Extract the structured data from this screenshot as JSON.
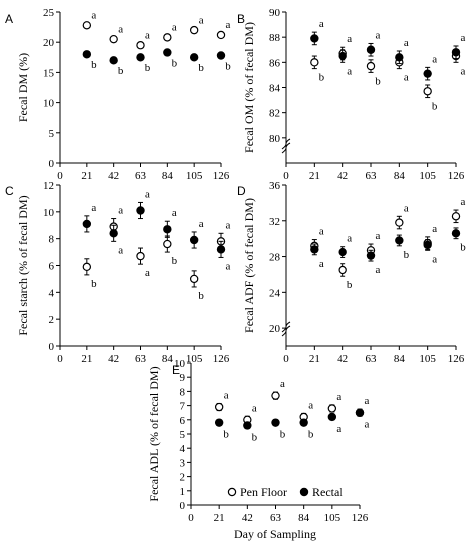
{
  "figure": {
    "common_xlabel": "Day of Sampling"
  },
  "legend": [
    {
      "label": "Pen Floor",
      "marker": "open-circle"
    },
    {
      "label": "Rectal",
      "marker": "filled-circle"
    }
  ],
  "chart_data": [
    {
      "panel": "A",
      "type": "scatter",
      "ylabel": "Fecal DM  (%)",
      "ylim": [
        0,
        25
      ],
      "yticks": [
        0,
        5,
        10,
        15,
        20,
        25
      ],
      "xlim": [
        0,
        126
      ],
      "xticks": [
        0,
        21,
        42,
        63,
        84,
        105,
        126
      ],
      "series": [
        {
          "name": "Pen Floor",
          "x": [
            21,
            42,
            63,
            84,
            105,
            126
          ],
          "values": [
            22.8,
            20.5,
            19.5,
            20.8,
            22.0,
            21.2
          ],
          "err": [
            0.3,
            0.3,
            0.3,
            0.3,
            0.3,
            0.3
          ],
          "letters": [
            "a",
            "a",
            "a",
            "a",
            "a",
            "a"
          ]
        },
        {
          "name": "Rectal",
          "x": [
            21,
            42,
            63,
            84,
            105,
            126
          ],
          "values": [
            18.0,
            17.0,
            17.5,
            18.3,
            17.5,
            17.8
          ],
          "err": [
            0.3,
            0.3,
            0.3,
            0.3,
            0.3,
            0.3
          ],
          "letters": [
            "b",
            "b",
            "b",
            "b",
            "b",
            "b"
          ]
        }
      ]
    },
    {
      "panel": "B",
      "type": "scatter",
      "ylabel": "Fecal OM  (% of fecal DM)",
      "ylim": [
        78,
        90
      ],
      "yticks": [
        80,
        82,
        84,
        86,
        88,
        90
      ],
      "axis_break": true,
      "xlim": [
        0,
        126
      ],
      "xticks": [
        0,
        21,
        42,
        63,
        84,
        105,
        126
      ],
      "series": [
        {
          "name": "Pen Floor",
          "x": [
            21,
            42,
            63,
            84,
            105,
            126
          ],
          "values": [
            86.0,
            86.7,
            85.7,
            86.0,
            83.7,
            86.5
          ],
          "err": [
            0.5,
            0.5,
            0.5,
            0.5,
            0.5,
            0.5
          ],
          "letters": [
            "b",
            "a",
            "b",
            "a",
            "b",
            "a"
          ]
        },
        {
          "name": "Rectal",
          "x": [
            21,
            42,
            63,
            84,
            105,
            126
          ],
          "values": [
            87.9,
            86.5,
            87.0,
            86.4,
            85.1,
            86.8
          ],
          "err": [
            0.5,
            0.5,
            0.5,
            0.5,
            0.5,
            0.5
          ],
          "letters": [
            "a",
            "a",
            "a",
            "a",
            "a",
            "a"
          ]
        }
      ]
    },
    {
      "panel": "C",
      "type": "scatter",
      "ylabel": "Fecal starch  (% of fecal DM)",
      "ylim": [
        0,
        12
      ],
      "yticks": [
        0,
        2,
        4,
        6,
        8,
        10,
        12
      ],
      "xlim": [
        0,
        126
      ],
      "xticks": [
        0,
        21,
        42,
        63,
        84,
        105,
        126
      ],
      "series": [
        {
          "name": "Pen Floor",
          "x": [
            21,
            42,
            63,
            84,
            105,
            126
          ],
          "values": [
            5.9,
            8.9,
            6.7,
            7.6,
            5.0,
            7.8
          ],
          "err": [
            0.6,
            0.6,
            0.6,
            0.6,
            0.6,
            0.6
          ],
          "letters": [
            "b",
            "a",
            "a",
            "b",
            "b",
            "a"
          ]
        },
        {
          "name": "Rectal",
          "x": [
            21,
            42,
            63,
            84,
            105,
            126
          ],
          "values": [
            9.1,
            8.4,
            10.1,
            8.7,
            7.9,
            7.2
          ],
          "err": [
            0.6,
            0.6,
            0.6,
            0.6,
            0.6,
            0.6
          ],
          "letters": [
            "a",
            "a",
            "a",
            "a",
            "a",
            "a"
          ]
        }
      ]
    },
    {
      "panel": "D",
      "type": "scatter",
      "ylabel": "Fecal ADF (% of fecal DM)",
      "ylim": [
        18,
        36
      ],
      "yticks": [
        20,
        24,
        28,
        32,
        36
      ],
      "axis_break": true,
      "xlim": [
        0,
        126
      ],
      "xticks": [
        0,
        21,
        42,
        63,
        84,
        105,
        126
      ],
      "series": [
        {
          "name": "Pen Floor",
          "x": [
            21,
            42,
            63,
            84,
            105,
            126
          ],
          "values": [
            29.2,
            26.5,
            28.7,
            31.8,
            29.5,
            32.5
          ],
          "err": [
            0.7,
            0.7,
            0.7,
            0.7,
            0.7,
            0.7
          ],
          "letters": [
            "a",
            "b",
            "a",
            "a",
            "a",
            "a"
          ]
        },
        {
          "name": "Rectal",
          "x": [
            21,
            42,
            63,
            84,
            105,
            126
          ],
          "values": [
            28.8,
            28.5,
            28.1,
            29.8,
            29.3,
            30.6
          ],
          "err": [
            0.6,
            0.6,
            0.6,
            0.6,
            0.6,
            0.6
          ],
          "letters": [
            "a",
            "a",
            "a",
            "b",
            "a",
            "b"
          ]
        }
      ]
    },
    {
      "panel": "E",
      "type": "scatter",
      "ylabel": "Fecal ADL  (% of fecal DM)",
      "ylim": [
        0,
        10
      ],
      "yticks": [
        0,
        1,
        2,
        3,
        4,
        5,
        6,
        7,
        8,
        9,
        10
      ],
      "xlim": [
        0,
        126
      ],
      "xticks": [
        0,
        21,
        42,
        63,
        84,
        105,
        126
      ],
      "series": [
        {
          "name": "Pen Floor",
          "x": [
            21,
            42,
            63,
            84,
            105,
            126
          ],
          "values": [
            6.9,
            6.0,
            7.7,
            6.2,
            6.8,
            6.5
          ],
          "err": [
            0.25,
            0.25,
            0.25,
            0.25,
            0.25,
            0.25
          ],
          "letters": [
            "a",
            "a",
            "a",
            "a",
            "a",
            "a"
          ]
        },
        {
          "name": "Rectal",
          "x": [
            21,
            42,
            63,
            84,
            105,
            126
          ],
          "values": [
            5.8,
            5.6,
            5.8,
            5.8,
            6.2,
            6.5
          ],
          "err": [
            0.2,
            0.2,
            0.2,
            0.2,
            0.2,
            0.2
          ],
          "letters": [
            "b",
            "b",
            "b",
            "b",
            "a",
            "a"
          ]
        }
      ]
    }
  ]
}
